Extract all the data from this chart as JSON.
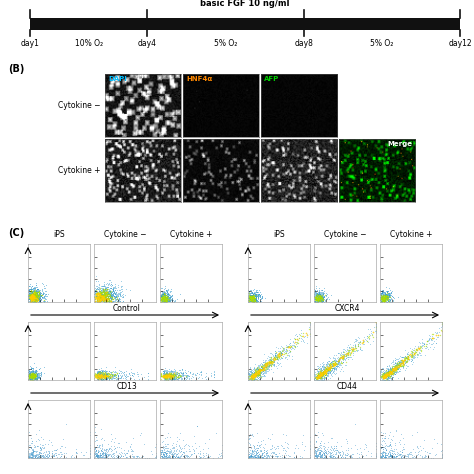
{
  "timeline_label": "basic FGF 10 ng/ml",
  "timeline_days": [
    "day1",
    "day4",
    "day8",
    "day12"
  ],
  "timeline_oxygen": [
    "10% O₂",
    "5% O₂",
    "5% O₂"
  ],
  "section_B_label": "(B)",
  "section_C_label": "(C)",
  "row_labels_B": [
    "Cytokine −",
    "Cytokine +"
  ],
  "col_labels_B": [
    "DAPI",
    "HNF4α",
    "AFP"
  ],
  "col_colors_B": [
    "#00bfff",
    "#ff8800",
    "#00cc00"
  ],
  "merge_label": "Merge",
  "flow_col_labels": [
    "iPS",
    "Cytokine −",
    "Cytokine +"
  ],
  "bg_color": "#ffffff",
  "timeline_bar_color": "#111111",
  "text_color": "#000000",
  "flow_border_color": "#aaaaaa"
}
